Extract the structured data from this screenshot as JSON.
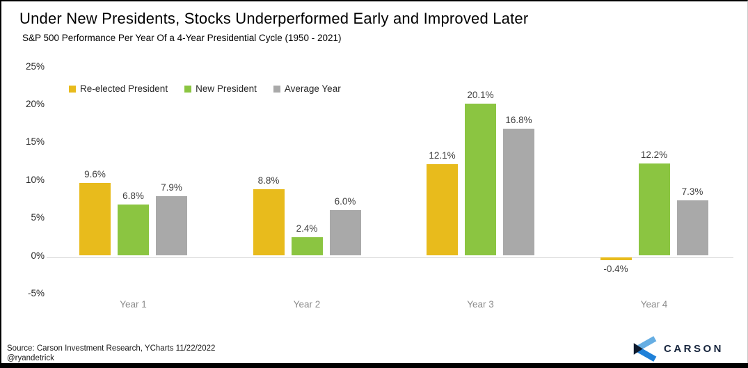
{
  "header": {
    "title": "Under New Presidents, Stocks Underperformed Early and Improved Later",
    "subtitle": "S&P 500 Performance Per Year Of a 4-Year Presidential Cycle (1950 - 2021)"
  },
  "chart_data": {
    "type": "bar",
    "title": "Under New Presidents, Stocks Underperformed Early and Improved Later",
    "subtitle": "S&P 500 Performance Per Year Of a 4-Year Presidential Cycle (1950 - 2021)",
    "categories": [
      "Year 1",
      "Year 2",
      "Year 3",
      "Year 4"
    ],
    "series": [
      {
        "name": "Re-elected President",
        "color": "#e8bb1c",
        "values": [
          9.6,
          8.8,
          12.1,
          -0.4
        ]
      },
      {
        "name": "New President",
        "color": "#8bc541",
        "values": [
          6.8,
          2.4,
          20.1,
          12.2
        ]
      },
      {
        "name": "Average Year",
        "color": "#a9a9a9",
        "values": [
          7.9,
          6.0,
          16.8,
          7.3
        ]
      }
    ],
    "value_suffix": "%",
    "yticks": [
      25,
      20,
      15,
      10,
      5,
      0,
      -5
    ],
    "ylim": [
      -5,
      25
    ],
    "grid": false,
    "legend_position": "top-left",
    "data_labels": true
  },
  "colors": {
    "axis_line": "#d9d9d9",
    "data_label": "#404040",
    "category_label": "#8c8c8c",
    "brand_navy": "#16243c",
    "logo_light_blue": "#66aee3",
    "logo_medium_blue": "#1f80d8",
    "logo_dark_navy": "#0e1b2e"
  },
  "footer": {
    "source_line1": "Source: Carson Investment Research, YCharts 11/22/2022",
    "source_line2": "@ryandetrick",
    "brand": "CARSON"
  }
}
